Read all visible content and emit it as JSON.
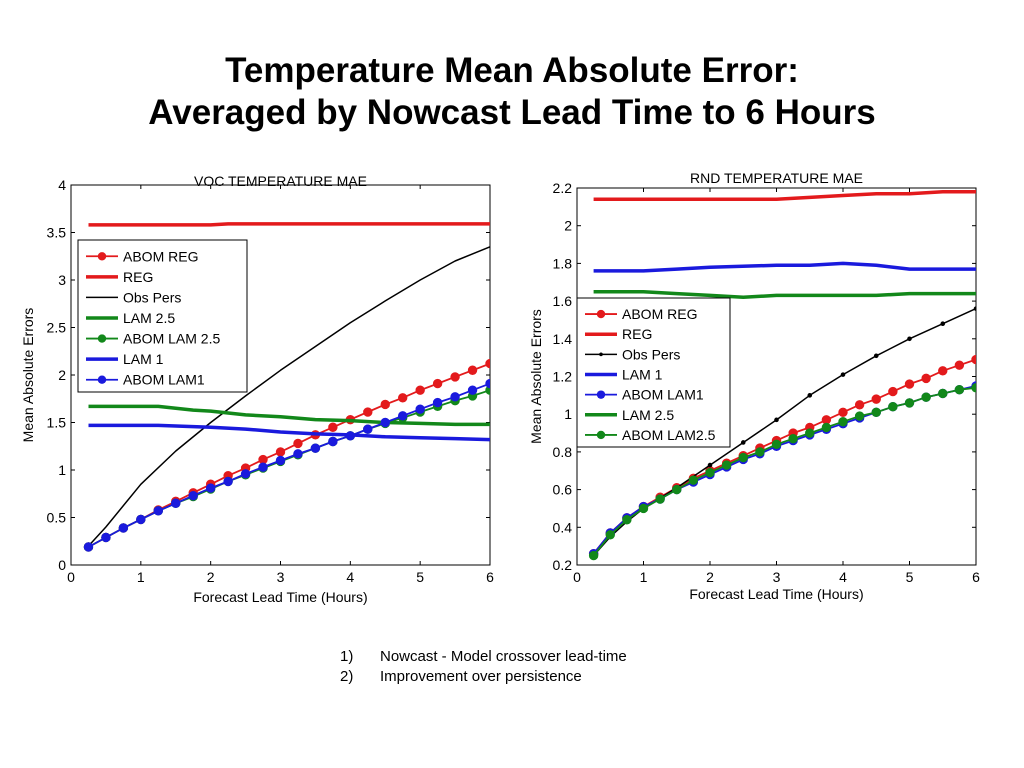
{
  "slide": {
    "title_line1": "Temperature Mean Absolute Error:",
    "title_line2": "Averaged by Nowcast Lead Time to 6 Hours"
  },
  "notes": [
    {
      "num": "1)",
      "text": "Nowcast - Model crossover lead-time"
    },
    {
      "num": "2)",
      "text": "Improvement over persistence"
    }
  ],
  "colors": {
    "red": "#e31a1c",
    "green": "#12881a",
    "blue": "#1a1add",
    "black": "#000000"
  },
  "chart_data": [
    {
      "type": "line",
      "title": "VOC TEMPERATURE MAE",
      "xlabel": "Forecast Lead Time (Hours)",
      "ylabel": "Mean Absolute Errors",
      "xlim": [
        0,
        6
      ],
      "ylim": [
        0,
        4
      ],
      "xticks": [
        0,
        1,
        2,
        3,
        4,
        5,
        6
      ],
      "yticks": [
        0,
        0.5,
        1,
        1.5,
        2,
        2.5,
        3,
        3.5,
        4
      ],
      "ytick_labels": [
        "0",
        "0.5",
        "1",
        "1.5",
        "2",
        "2.5",
        "3",
        "3.5",
        "4"
      ],
      "legend_position": "upper-left",
      "series": [
        {
          "name": "ABOM REG",
          "color": "#e31a1c",
          "width": 1.8,
          "marker": "circle",
          "x": [
            0.25,
            0.5,
            0.75,
            1,
            1.25,
            1.5,
            1.75,
            2,
            2.25,
            2.5,
            2.75,
            3,
            3.25,
            3.5,
            3.75,
            4,
            4.25,
            4.5,
            4.75,
            5,
            5.25,
            5.5,
            5.75,
            6
          ],
          "y": [
            0.19,
            0.29,
            0.39,
            0.48,
            0.58,
            0.67,
            0.76,
            0.85,
            0.94,
            1.02,
            1.11,
            1.19,
            1.28,
            1.37,
            1.45,
            1.53,
            1.61,
            1.69,
            1.76,
            1.84,
            1.91,
            1.98,
            2.05,
            2.12
          ]
        },
        {
          "name": "REG",
          "color": "#e31a1c",
          "width": 3.5,
          "marker": "none",
          "x": [
            0.25,
            1,
            2,
            2.25,
            3,
            4,
            5,
            6
          ],
          "y": [
            3.58,
            3.58,
            3.58,
            3.59,
            3.59,
            3.59,
            3.59,
            3.59
          ]
        },
        {
          "name": "Obs Pers",
          "color": "#000000",
          "width": 1.5,
          "marker": "none",
          "x": [
            0.25,
            0.5,
            1,
            1.5,
            2,
            2.5,
            3,
            3.5,
            4,
            4.5,
            5,
            5.5,
            6
          ],
          "y": [
            0.2,
            0.4,
            0.85,
            1.2,
            1.5,
            1.78,
            2.05,
            2.3,
            2.55,
            2.78,
            3.0,
            3.2,
            3.35
          ]
        },
        {
          "name": "LAM 2.5",
          "color": "#12881a",
          "width": 3.5,
          "marker": "none",
          "x": [
            0.25,
            1,
            1.25,
            1.75,
            2,
            2.5,
            3,
            3.5,
            4,
            4.5,
            5,
            5.5,
            6
          ],
          "y": [
            1.67,
            1.67,
            1.67,
            1.63,
            1.62,
            1.58,
            1.56,
            1.53,
            1.52,
            1.5,
            1.49,
            1.48,
            1.48
          ]
        },
        {
          "name": "ABOM LAM 2.5",
          "color": "#12881a",
          "width": 1.8,
          "marker": "circle",
          "x": [
            0.25,
            0.5,
            0.75,
            1,
            1.25,
            1.5,
            1.75,
            2,
            2.25,
            2.5,
            2.75,
            3,
            3.25,
            3.5,
            3.75,
            4,
            4.25,
            4.5,
            4.75,
            5,
            5.25,
            5.5,
            5.75,
            6
          ],
          "y": [
            0.19,
            0.29,
            0.39,
            0.48,
            0.57,
            0.65,
            0.72,
            0.8,
            0.88,
            0.95,
            1.02,
            1.09,
            1.16,
            1.23,
            1.3,
            1.36,
            1.43,
            1.49,
            1.55,
            1.61,
            1.67,
            1.73,
            1.78,
            1.84
          ]
        },
        {
          "name": "LAM 1",
          "color": "#1a1add",
          "width": 3.5,
          "marker": "none",
          "x": [
            0.25,
            1,
            1.25,
            2,
            2.5,
            3,
            3.5,
            4,
            4.5,
            5,
            5.5,
            6
          ],
          "y": [
            1.47,
            1.47,
            1.47,
            1.45,
            1.43,
            1.4,
            1.38,
            1.37,
            1.35,
            1.34,
            1.33,
            1.32
          ]
        },
        {
          "name": "ABOM LAM1",
          "color": "#1a1add",
          "width": 1.8,
          "marker": "circle",
          "x": [
            0.25,
            0.5,
            0.75,
            1,
            1.25,
            1.5,
            1.75,
            2,
            2.25,
            2.5,
            2.75,
            3,
            3.25,
            3.5,
            3.75,
            4,
            4.25,
            4.5,
            4.75,
            5,
            5.25,
            5.5,
            5.75,
            6
          ],
          "y": [
            0.19,
            0.29,
            0.39,
            0.48,
            0.57,
            0.65,
            0.73,
            0.81,
            0.88,
            0.96,
            1.03,
            1.1,
            1.17,
            1.23,
            1.3,
            1.36,
            1.43,
            1.5,
            1.57,
            1.64,
            1.71,
            1.77,
            1.84,
            1.91
          ]
        }
      ]
    },
    {
      "type": "line",
      "title": "RND TEMPERATURE MAE",
      "xlabel": "Forecast Lead Time (Hours)",
      "ylabel": "Mean Absolute Errors",
      "xlim": [
        0,
        6
      ],
      "ylim": [
        0.2,
        2.2
      ],
      "xticks": [
        0,
        1,
        2,
        3,
        4,
        5,
        6
      ],
      "yticks": [
        0.2,
        0.4,
        0.6,
        0.8,
        1,
        1.2,
        1.4,
        1.6,
        1.8,
        2,
        2.2
      ],
      "ytick_labels": [
        "0.2",
        "0.4",
        "0.6",
        "0.8",
        "1",
        "1.2",
        "1.4",
        "1.6",
        "1.8",
        "2",
        "2.2"
      ],
      "legend_position": "upper-left",
      "series": [
        {
          "name": "ABOM REG",
          "color": "#e31a1c",
          "width": 1.8,
          "marker": "circle",
          "x": [
            0.25,
            0.5,
            0.75,
            1,
            1.25,
            1.5,
            1.75,
            2,
            2.25,
            2.5,
            2.75,
            3,
            3.25,
            3.5,
            3.75,
            4,
            4.25,
            4.5,
            4.75,
            5,
            5.25,
            5.5,
            5.75,
            6
          ],
          "y": [
            0.26,
            0.37,
            0.45,
            0.51,
            0.56,
            0.61,
            0.66,
            0.7,
            0.74,
            0.78,
            0.82,
            0.86,
            0.9,
            0.93,
            0.97,
            1.01,
            1.05,
            1.08,
            1.12,
            1.16,
            1.19,
            1.23,
            1.26,
            1.29
          ]
        },
        {
          "name": "REG",
          "color": "#e31a1c",
          "width": 3.5,
          "marker": "none",
          "x": [
            0.25,
            1,
            2,
            3,
            3.5,
            4,
            4.5,
            5,
            5.5,
            6
          ],
          "y": [
            2.14,
            2.14,
            2.14,
            2.14,
            2.15,
            2.16,
            2.17,
            2.17,
            2.18,
            2.18
          ]
        },
        {
          "name": "Obs Pers",
          "color": "#000000",
          "width": 1.5,
          "marker": "dot",
          "x": [
            0.25,
            0.5,
            0.75,
            1,
            1.5,
            2,
            2.5,
            3,
            3.5,
            4,
            4.5,
            5,
            5.5,
            6
          ],
          "y": [
            0.25,
            0.35,
            0.43,
            0.5,
            0.61,
            0.73,
            0.85,
            0.97,
            1.1,
            1.21,
            1.31,
            1.4,
            1.48,
            1.56
          ]
        },
        {
          "name": "LAM 1",
          "color": "#1a1add",
          "width": 3.5,
          "marker": "none",
          "x": [
            0.25,
            1,
            1.5,
            2,
            3,
            3.5,
            4,
            4.5,
            5,
            6
          ],
          "y": [
            1.76,
            1.76,
            1.77,
            1.78,
            1.79,
            1.79,
            1.8,
            1.79,
            1.77,
            1.77
          ]
        },
        {
          "name": "ABOM LAM1",
          "color": "#1a1add",
          "width": 1.8,
          "marker": "circle",
          "x": [
            0.25,
            0.5,
            0.75,
            1,
            1.25,
            1.5,
            1.75,
            2,
            2.25,
            2.5,
            2.75,
            3,
            3.25,
            3.5,
            3.75,
            4,
            4.25,
            4.5,
            4.75,
            5,
            5.25,
            5.5,
            5.75,
            6
          ],
          "y": [
            0.26,
            0.37,
            0.45,
            0.51,
            0.55,
            0.6,
            0.64,
            0.68,
            0.72,
            0.76,
            0.79,
            0.83,
            0.86,
            0.89,
            0.92,
            0.95,
            0.98,
            1.01,
            1.04,
            1.06,
            1.09,
            1.11,
            1.13,
            1.15
          ]
        },
        {
          "name": "LAM 2.5",
          "color": "#12881a",
          "width": 3.5,
          "marker": "none",
          "x": [
            0.25,
            1,
            1.5,
            2,
            2.5,
            3,
            3.5,
            4,
            4.5,
            5,
            5.5,
            6
          ],
          "y": [
            1.65,
            1.65,
            1.64,
            1.63,
            1.62,
            1.63,
            1.63,
            1.63,
            1.63,
            1.64,
            1.64,
            1.64
          ]
        },
        {
          "name": "ABOM LAM2.5",
          "color": "#12881a",
          "width": 1.8,
          "marker": "circle",
          "x": [
            0.25,
            0.5,
            0.75,
            1,
            1.25,
            1.5,
            1.75,
            2,
            2.25,
            2.5,
            2.75,
            3,
            3.25,
            3.5,
            3.75,
            4,
            4.25,
            4.5,
            4.75,
            5,
            5.25,
            5.5,
            5.75,
            6
          ],
          "y": [
            0.25,
            0.36,
            0.44,
            0.5,
            0.55,
            0.6,
            0.65,
            0.69,
            0.73,
            0.77,
            0.8,
            0.84,
            0.87,
            0.9,
            0.93,
            0.96,
            0.99,
            1.01,
            1.04,
            1.06,
            1.09,
            1.11,
            1.13,
            1.14
          ]
        }
      ]
    }
  ]
}
